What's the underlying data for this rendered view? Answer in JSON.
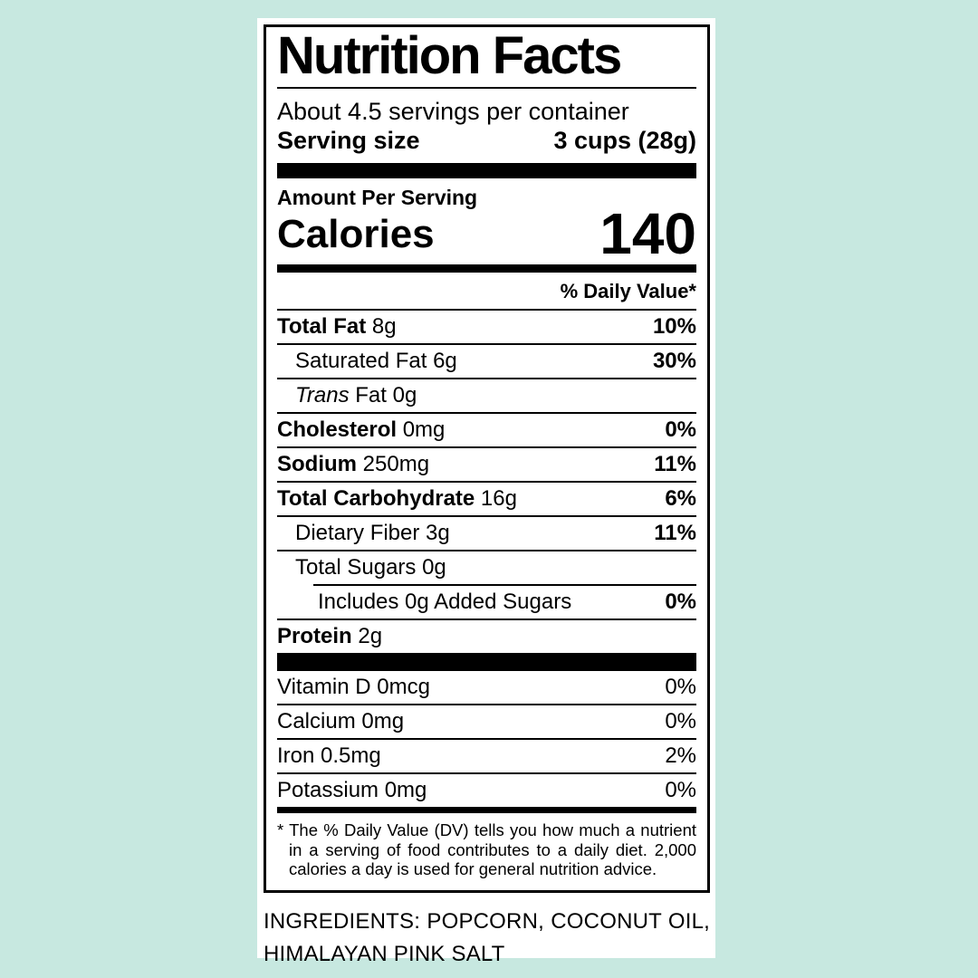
{
  "colors": {
    "background": "#c7e8e0",
    "label_bg": "#ffffff",
    "ink": "#000000"
  },
  "label": {
    "title": "Nutrition Facts",
    "servings_per_container": "About 4.5 servings per container",
    "serving_size_label": "Serving size",
    "serving_size_value": "3 cups (28g)",
    "amount_per_serving": "Amount Per Serving",
    "calories_label": "Calories",
    "calories_value": "140",
    "daily_value_header": "% Daily Value*",
    "nutrients": [
      {
        "parts": [
          {
            "text": "Total Fat",
            "bold": true
          },
          {
            "text": " 8g"
          }
        ],
        "dv": "10%",
        "dv_bold": true,
        "indent": 0
      },
      {
        "parts": [
          {
            "text": "Saturated Fat 6g"
          }
        ],
        "dv": "30%",
        "dv_bold": true,
        "indent": 1
      },
      {
        "parts": [
          {
            "text": "Trans",
            "italic": true
          },
          {
            "text": " Fat 0g"
          }
        ],
        "dv": "",
        "indent": 1
      },
      {
        "parts": [
          {
            "text": "Cholesterol",
            "bold": true
          },
          {
            "text": " 0mg"
          }
        ],
        "dv": "0%",
        "dv_bold": true,
        "indent": 0
      },
      {
        "parts": [
          {
            "text": "Sodium",
            "bold": true
          },
          {
            "text": " 250mg"
          }
        ],
        "dv": "11%",
        "dv_bold": true,
        "indent": 0
      },
      {
        "parts": [
          {
            "text": "Total Carbohydrate",
            "bold": true
          },
          {
            "text": " 16g"
          }
        ],
        "dv": "6%",
        "dv_bold": true,
        "indent": 0
      },
      {
        "parts": [
          {
            "text": "Dietary Fiber 3g"
          }
        ],
        "dv": "11%",
        "dv_bold": true,
        "indent": 1
      },
      {
        "parts": [
          {
            "text": "Total Sugars 0g"
          }
        ],
        "dv": "",
        "indent": 1
      },
      {
        "parts": [
          {
            "text": "Includes 0g Added Sugars"
          }
        ],
        "dv": "0%",
        "dv_bold": true,
        "indent": 2,
        "divider_indent": 40
      },
      {
        "parts": [
          {
            "text": "Protein",
            "bold": true
          },
          {
            "text": " 2g"
          }
        ],
        "dv": "",
        "indent": 0
      }
    ],
    "micronutrients": [
      {
        "parts": [
          {
            "text": "Vitamin D 0mcg"
          }
        ],
        "dv": "0%"
      },
      {
        "parts": [
          {
            "text": "Calcium 0mg"
          }
        ],
        "dv": "0%"
      },
      {
        "parts": [
          {
            "text": "Iron 0.5mg"
          }
        ],
        "dv": "2%"
      },
      {
        "parts": [
          {
            "text": "Potassium 0mg"
          }
        ],
        "dv": "0%"
      }
    ],
    "footnote": "* The % Daily Value (DV) tells you how much a nutrient in a serving of food contributes to a daily diet. 2,000 calories a day is used for general nutrition advice."
  },
  "ingredients": {
    "text": "INGREDIENTS: POPCORN, COCONUT OIL, HIMALAYAN PINK SALT"
  }
}
